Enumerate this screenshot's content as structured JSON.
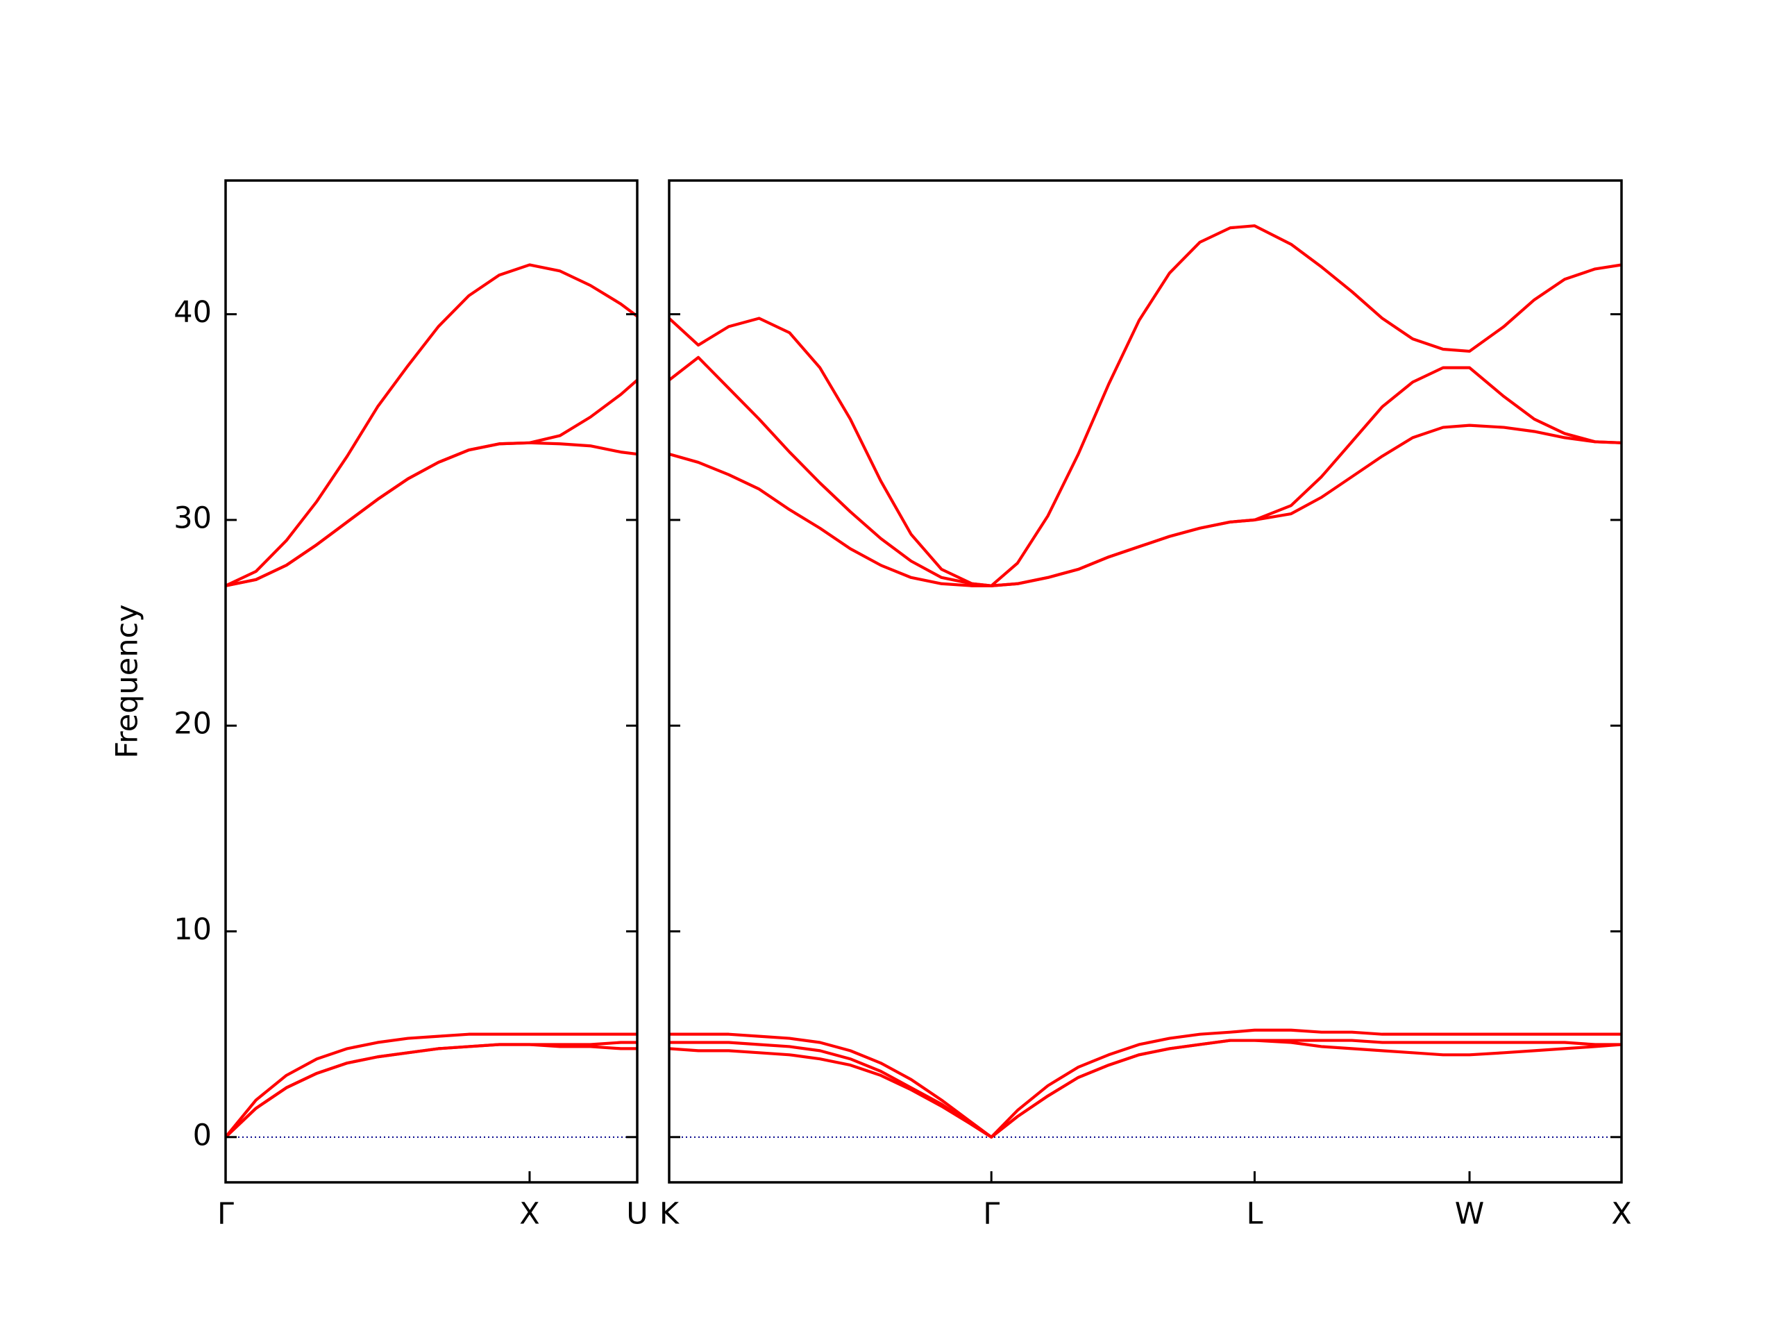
{
  "chart_data": [
    {
      "type": "line",
      "y_label": "Frequency",
      "xlim": [
        0,
        1.354
      ],
      "ylim": [
        -2.2,
        46.5
      ],
      "xticks": [
        {
          "value": 0,
          "label": "Γ"
        },
        {
          "value": 1,
          "label": "X"
        },
        {
          "value": 1.354,
          "label": "U"
        }
      ],
      "yticks": [
        0,
        10,
        20,
        30,
        40
      ],
      "tick_labels": true,
      "zero_line_color": "#00008b",
      "x": [
        0,
        0.1,
        0.2,
        0.3,
        0.4,
        0.5,
        0.6,
        0.7,
        0.8,
        0.9,
        1.0,
        1.1,
        1.2,
        1.3,
        1.354
      ],
      "series": [
        {
          "color": "#ff0000",
          "values": [
            0,
            1.4,
            2.4,
            3.1,
            3.6,
            3.9,
            4.1,
            4.3,
            4.4,
            4.5,
            4.5,
            4.4,
            4.4,
            4.3,
            4.3
          ]
        },
        {
          "color": "#ff0000",
          "values": [
            0,
            1.4,
            2.4,
            3.1,
            3.6,
            3.9,
            4.1,
            4.3,
            4.4,
            4.5,
            4.5,
            4.5,
            4.5,
            4.6,
            4.6
          ]
        },
        {
          "color": "#ff0000",
          "values": [
            0,
            1.8,
            3.0,
            3.8,
            4.3,
            4.6,
            4.8,
            4.9,
            5.0,
            5.0,
            5.0,
            5.0,
            5.0,
            5.0,
            5.0
          ]
        },
        {
          "color": "#ff0000",
          "values": [
            26.8,
            27.1,
            27.8,
            28.8,
            29.9,
            31.0,
            32.0,
            32.8,
            33.4,
            33.7,
            33.75,
            33.7,
            33.6,
            33.3,
            33.2
          ]
        },
        {
          "color": "#ff0000",
          "values": [
            26.8,
            27.1,
            27.8,
            28.8,
            29.9,
            31.0,
            32.0,
            32.8,
            33.4,
            33.7,
            33.75,
            34.1,
            35.0,
            36.1,
            36.8
          ]
        },
        {
          "color": "#ff0000",
          "values": [
            26.8,
            27.5,
            29.0,
            30.9,
            33.1,
            35.5,
            37.5,
            39.4,
            40.9,
            41.9,
            42.4,
            42.1,
            41.4,
            40.5,
            39.9
          ]
        }
      ]
    },
    {
      "type": "line",
      "xlim": [
        1.354,
        4.487
      ],
      "ylim": [
        -2.2,
        46.5
      ],
      "xticks": [
        {
          "value": 1.354,
          "label": "K"
        },
        {
          "value": 2.414,
          "label": "Γ"
        },
        {
          "value": 3.28,
          "label": "L"
        },
        {
          "value": 3.987,
          "label": "W"
        },
        {
          "value": 4.487,
          "label": "X"
        }
      ],
      "yticks": [
        0,
        10,
        20,
        30,
        40
      ],
      "tick_labels": false,
      "zero_line_color": "#00008b",
      "x": [
        1.354,
        1.45,
        1.55,
        1.65,
        1.75,
        1.85,
        1.95,
        2.05,
        2.15,
        2.25,
        2.35,
        2.414,
        2.5,
        2.6,
        2.7,
        2.8,
        2.9,
        3.0,
        3.1,
        3.2,
        3.28,
        3.4,
        3.5,
        3.6,
        3.7,
        3.8,
        3.9,
        3.987,
        4.1,
        4.2,
        4.3,
        4.4,
        4.487
      ],
      "series": [
        {
          "color": "#ff0000",
          "values": [
            4.3,
            4.2,
            4.2,
            4.1,
            4.0,
            3.8,
            3.5,
            3.0,
            2.3,
            1.5,
            0.6,
            0,
            1.0,
            2.0,
            2.9,
            3.5,
            4.0,
            4.3,
            4.5,
            4.7,
            4.7,
            4.6,
            4.4,
            4.3,
            4.2,
            4.1,
            4.0,
            4.0,
            4.1,
            4.2,
            4.3,
            4.4,
            4.5
          ]
        },
        {
          "color": "#ff0000",
          "values": [
            4.6,
            4.6,
            4.6,
            4.5,
            4.4,
            4.2,
            3.8,
            3.2,
            2.4,
            1.6,
            0.6,
            0,
            1.0,
            2.0,
            2.9,
            3.5,
            4.0,
            4.3,
            4.5,
            4.7,
            4.7,
            4.7,
            4.7,
            4.7,
            4.6,
            4.6,
            4.6,
            4.6,
            4.6,
            4.6,
            4.6,
            4.5,
            4.5
          ]
        },
        {
          "color": "#ff0000",
          "values": [
            5.0,
            5.0,
            5.0,
            4.9,
            4.8,
            4.6,
            4.2,
            3.6,
            2.8,
            1.8,
            0.7,
            0,
            1.3,
            2.5,
            3.4,
            4.0,
            4.5,
            4.8,
            5.0,
            5.1,
            5.2,
            5.2,
            5.1,
            5.1,
            5.0,
            5.0,
            5.0,
            5.0,
            5.0,
            5.0,
            5.0,
            5.0,
            5.0
          ]
        },
        {
          "color": "#ff0000",
          "values": [
            33.2,
            32.8,
            32.2,
            31.5,
            30.5,
            29.6,
            28.6,
            27.8,
            27.2,
            26.9,
            26.8,
            26.8,
            26.9,
            27.2,
            27.6,
            28.2,
            28.7,
            29.2,
            29.6,
            29.9,
            30.0,
            30.3,
            31.1,
            32.1,
            33.1,
            34.0,
            34.5,
            34.6,
            34.5,
            34.3,
            34.0,
            33.8,
            33.75
          ]
        },
        {
          "color": "#ff0000",
          "values": [
            36.8,
            37.9,
            36.4,
            34.9,
            33.3,
            31.8,
            30.4,
            29.1,
            28.0,
            27.2,
            26.9,
            26.8,
            26.9,
            27.2,
            27.6,
            28.2,
            28.7,
            29.2,
            29.6,
            29.9,
            30.0,
            30.7,
            32.1,
            33.8,
            35.5,
            36.7,
            37.4,
            37.4,
            36.0,
            34.9,
            34.2,
            33.8,
            33.75
          ]
        },
        {
          "color": "#ff0000",
          "values": [
            39.8,
            38.5,
            39.4,
            39.8,
            39.1,
            37.4,
            34.9,
            31.9,
            29.3,
            27.6,
            26.9,
            26.8,
            27.9,
            30.2,
            33.2,
            36.6,
            39.7,
            42.0,
            43.5,
            44.2,
            44.3,
            43.4,
            42.3,
            41.1,
            39.8,
            38.8,
            38.3,
            38.2,
            39.4,
            40.7,
            41.7,
            42.2,
            42.4
          ]
        }
      ]
    }
  ]
}
